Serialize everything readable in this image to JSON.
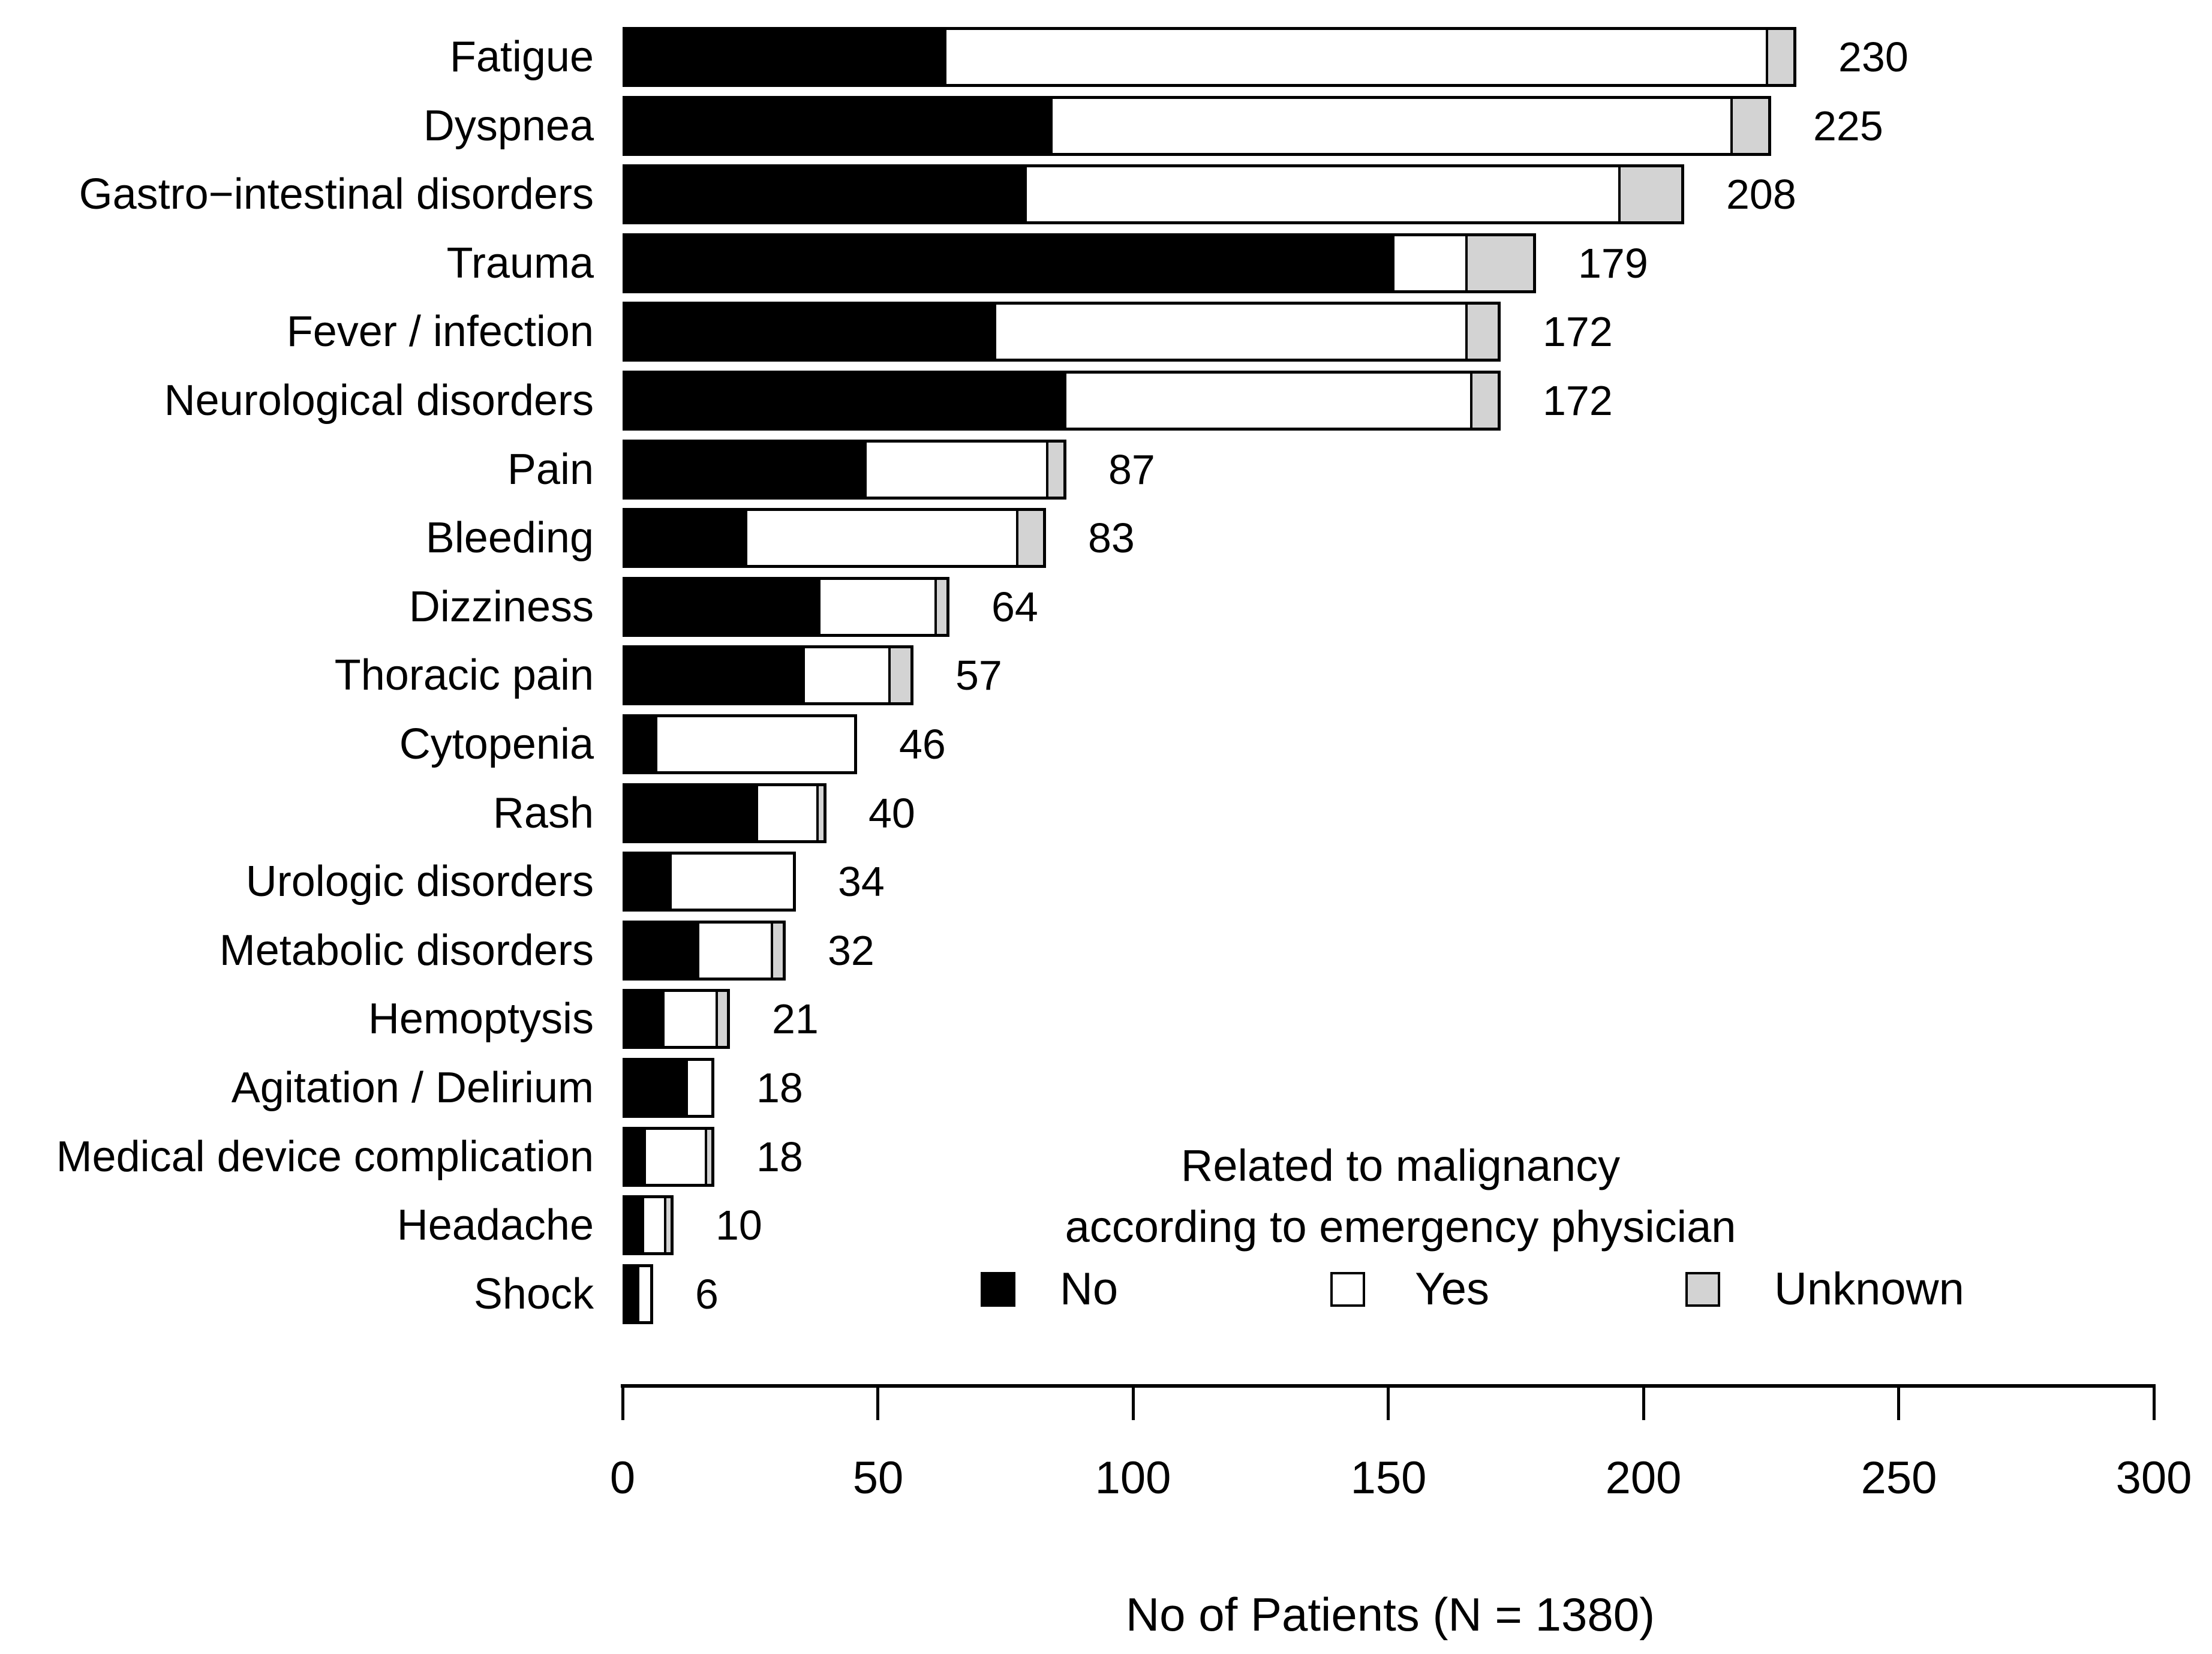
{
  "chart_data": {
    "type": "bar",
    "orientation": "horizontal-stacked",
    "xlabel": "No of Patients (N = 1380)",
    "xlim": [
      0,
      300
    ],
    "x_ticks": [
      0,
      50,
      100,
      150,
      200,
      250,
      300
    ],
    "grid": false,
    "categories": [
      "Fatigue",
      "Dyspnea",
      "Gastro−intestinal disorders",
      "Trauma",
      "Fever / infection",
      "Neurological disorders",
      "Pain",
      "Bleeding",
      "Dizziness",
      "Thoracic pain",
      "Cytopenia",
      "Rash",
      "Urologic disorders",
      "Metabolic disorders",
      "Hemoptysis",
      "Agitation / Delirium",
      "Medical device complication",
      "Headache",
      "Shock"
    ],
    "totals": [
      230,
      225,
      208,
      179,
      172,
      172,
      87,
      83,
      64,
      57,
      46,
      40,
      34,
      32,
      21,
      18,
      18,
      10,
      6
    ],
    "series": [
      {
        "name": "No",
        "color": "#000000",
        "values": [
          63,
          84,
          79,
          152,
          73,
          87,
          48,
          24,
          39,
          36,
          6,
          27,
          9,
          15,
          8,
          13,
          4,
          4,
          3
        ]
      },
      {
        "name": "Yes",
        "color": "#ffffff",
        "values": [
          162,
          134,
          117,
          14,
          93,
          80,
          36,
          54,
          23,
          17,
          40,
          12,
          25,
          15,
          11,
          5,
          13,
          5,
          3
        ]
      },
      {
        "name": "Unknown",
        "color": "#d3d3d3",
        "values": [
          5,
          7,
          12,
          13,
          6,
          5,
          3,
          5,
          2,
          4,
          0,
          1,
          0,
          2,
          2,
          0,
          1,
          1,
          0
        ]
      }
    ],
    "legend": {
      "position": "bottom-right",
      "title_lines": [
        "Related to malignancy",
        "according to emergency physician"
      ],
      "entries": [
        {
          "label": "No",
          "color": "#000000"
        },
        {
          "label": "Yes",
          "color": "#ffffff"
        },
        {
          "label": "Unknown",
          "color": "#d3d3d3"
        }
      ]
    }
  }
}
